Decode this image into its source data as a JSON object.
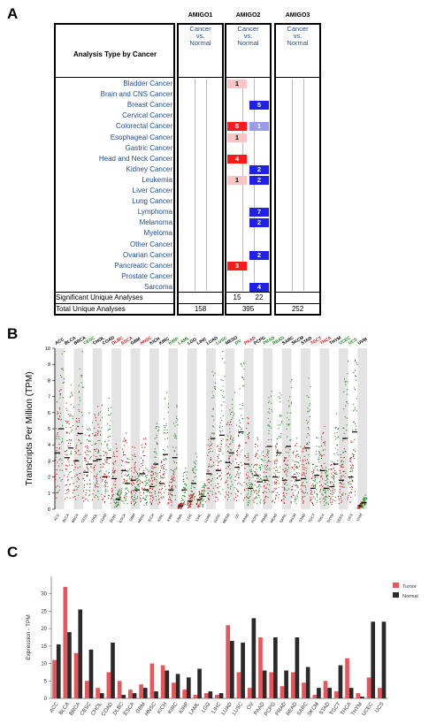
{
  "panels": {
    "a": "A",
    "b": "B",
    "c": "C"
  },
  "table": {
    "genes": [
      "AMIGO1",
      "AMIGO2",
      "AMIGO3"
    ],
    "subheader": [
      "Cancer",
      "vs.",
      "Normal"
    ],
    "analysis_header": "Analysis Type by Cancer",
    "cancers": [
      "Bladder Cancer",
      "Brain and CNS Cancer",
      "Breast Cancer",
      "Cervical Cancer",
      "Colorectal Cancer",
      "Esophageal Cancer",
      "Gastric Cancer",
      "Head and Neck Cancer",
      "Kidney Cancer",
      "Leukemia",
      "Liver Cancer",
      "Lung Cancer",
      "Lymphoma",
      "Melanoma",
      "Myeloma",
      "Other Cancer",
      "Ovarian Cancer",
      "Pancreatic Cancer",
      "Prostate Cancer",
      "Sarcoma"
    ],
    "amigo2_up": [
      "1",
      "",
      "",
      "",
      "5",
      "1",
      "",
      "4",
      "",
      "1",
      "",
      "",
      "",
      "",
      "",
      "",
      "",
      "3",
      "",
      ""
    ],
    "amigo2_down": [
      "",
      "",
      "5",
      "",
      "1",
      "",
      "",
      "",
      "2",
      "2",
      "",
      "",
      "7",
      "2",
      "",
      "",
      "2",
      "",
      "",
      "4"
    ],
    "significant_label": "Significant Unique Analyses",
    "total_label": "Total Unique Analyses",
    "significant": {
      "amigo2_up": "15",
      "amigo2_down": "22"
    },
    "totals": [
      "158",
      "395",
      "252"
    ],
    "colors": {
      "up_strong": "#ff1a1a",
      "up_light": "#f8c4c4",
      "down_strong": "#2020e8",
      "down_light": "#9999ee"
    }
  },
  "chart_data": [
    {
      "type": "scatter",
      "ylabel": "Transcripts Per Million (TPM)",
      "ylim": [
        0,
        10
      ],
      "yticks": [
        "0",
        "1",
        "2",
        "3",
        "4",
        "5",
        "6",
        "7",
        "8",
        "9",
        "10"
      ],
      "categories": [
        "ACC",
        "BLCA",
        "BRCA",
        "CESC",
        "CHOL",
        "COAD",
        "DLBC",
        "ESCA",
        "GBM",
        "HNSC",
        "KICH",
        "KIRC",
        "KIRP",
        "LAML",
        "LGG",
        "LIHC",
        "LUAD",
        "LUSC",
        "MESO",
        "OV",
        "PAAD",
        "PCPG",
        "PRAD",
        "READ",
        "SARC",
        "SKCM",
        "STAD",
        "TGCT",
        "THCA",
        "THYM",
        "UCEC",
        "UCS",
        "UVM"
      ],
      "category_colors": [
        "#000000",
        "#000000",
        "#000000",
        "#1a8a1a",
        "#000000",
        "#000000",
        "#cc1111",
        "#cc1111",
        "#000000",
        "#cc1111",
        "#000000",
        "#000000",
        "#1a8a1a",
        "#1a8a1a",
        "#000000",
        "#000000",
        "#000000",
        "#1a8a1a",
        "#000000",
        "#1a8a1a",
        "#cc1111",
        "#000000",
        "#1a8a1a",
        "#1a8a1a",
        "#000000",
        "#000000",
        "#000000",
        "#cc1111",
        "#cc1111",
        "#000000",
        "#1a8a1a",
        "#1a8a1a",
        "#000000"
      ],
      "tumor_median": [
        3.5,
        3.2,
        3.0,
        2.3,
        3.0,
        2.0,
        1.9,
        2.4,
        1.8,
        2.2,
        1.4,
        1.6,
        1.2,
        0.2,
        0.5,
        0.6,
        2.2,
        2.4,
        2.9,
        2.6,
        2.8,
        2.1,
        1.8,
        2.0,
        1.8,
        2.0,
        1.9,
        1.3,
        2.4,
        1.4,
        1.8,
        2.0,
        0.2
      ],
      "normal_median": [
        5.0,
        3.8,
        4.7,
        2.8,
        3.1,
        3.2,
        0.6,
        1.6,
        1.2,
        1.2,
        2.8,
        3.4,
        3.2,
        1.2,
        1.6,
        0.8,
        4.4,
        4.6,
        3.5,
        4.8,
        1.3,
        1.7,
        3.9,
        3.5,
        3.9,
        1.8,
        3.8,
        2.1,
        1.3,
        2.8,
        4.4,
        4.8,
        0.4
      ],
      "colors": {
        "tumor": "#cc1111",
        "normal": "#1a8a1a",
        "band": "#e3e3e3"
      }
    },
    {
      "type": "bar",
      "ylabel": "Expression - TPM",
      "ylim": [
        0,
        35
      ],
      "yticks": [
        "0",
        "5",
        "10",
        "15",
        "20",
        "25",
        "30"
      ],
      "categories": [
        "ACC",
        "BLCA",
        "BRCA",
        "CESC",
        "CHOL",
        "COAD",
        "DLBC",
        "ESCA",
        "GBM",
        "HNSC",
        "KICH",
        "KIRC",
        "KIRP",
        "LAML",
        "LGG",
        "LIHC",
        "LUAD",
        "LUSC",
        "OV",
        "PAAD",
        "PCPG",
        "PRAD",
        "READ",
        "SARC",
        "SKCM",
        "STAD",
        "TGCT",
        "THCA",
        "THYM",
        "UCEC",
        "UCS"
      ],
      "series": [
        {
          "name": "Tumor",
          "values": [
            11,
            32,
            13,
            5,
            3,
            7.5,
            5,
            2.5,
            4,
            10,
            9.5,
            4.5,
            2.5,
            1,
            1.5,
            1,
            21,
            7.5,
            3,
            17.5,
            7.5,
            3.5,
            7.5,
            4.5,
            1,
            5,
            2,
            11.5,
            1.5,
            6,
            3
          ]
        },
        {
          "name": "Normal",
          "values": [
            15.5,
            19,
            25.5,
            14,
            1.5,
            16,
            1,
            1.5,
            3,
            2,
            8,
            7,
            6,
            8.5,
            2,
            1.5,
            16.5,
            16,
            23,
            8,
            17.5,
            8,
            17.5,
            9,
            3,
            3,
            9.5,
            3,
            0.5,
            22,
            22
          ]
        }
      ],
      "legend": "top-right",
      "colors": {
        "tumor": "#e8565b",
        "normal": "#2a2a2a"
      }
    }
  ]
}
